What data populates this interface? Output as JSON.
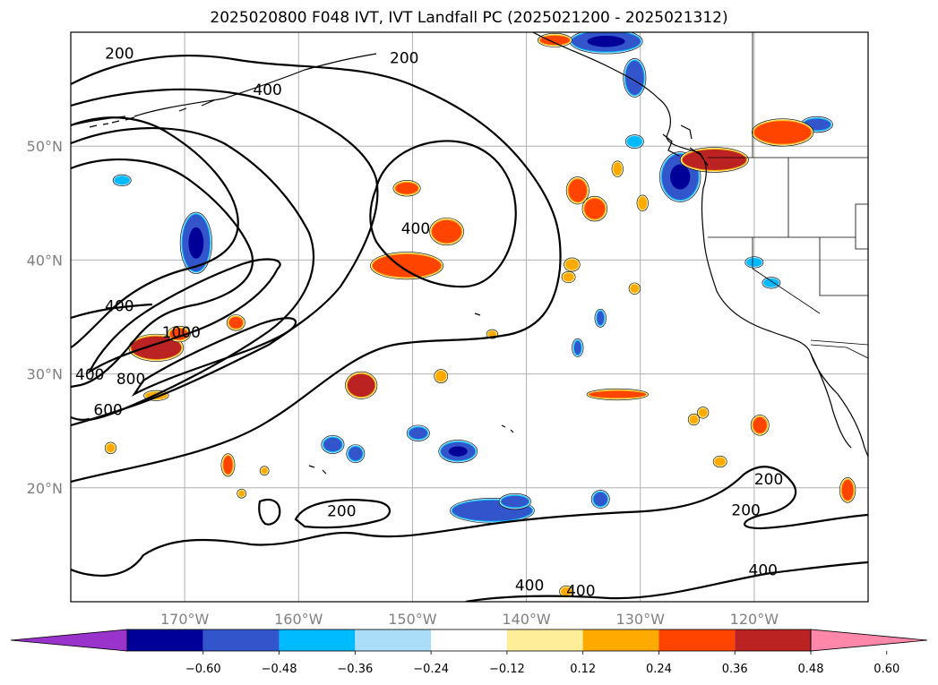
{
  "title": "2025020800 F048 IVT, IVT Landfall PC (2025021200 - 2025021312)",
  "map": {
    "region": "North Pacific / West Coast North America",
    "lon_range": [
      -180,
      -110
    ],
    "lat_range": [
      10,
      60
    ],
    "lat_ticks": [
      "50°N",
      "40°N",
      "30°N",
      "20°N"
    ],
    "lon_ticks": [
      "170°W",
      "160°W",
      "150°W",
      "140°W",
      "130°W",
      "120°W"
    ]
  },
  "contours": {
    "variable": "IVT",
    "levels": [
      200,
      400,
      600,
      800,
      1000
    ],
    "labels": [
      {
        "text": "200",
        "lon": -177,
        "lat": 57.7
      },
      {
        "text": "200",
        "lon": -152,
        "lat": 57.3
      },
      {
        "text": "400",
        "lon": -164,
        "lat": 54.5
      },
      {
        "text": "400",
        "lon": -151,
        "lat": 42.3
      },
      {
        "text": "400",
        "lon": -177,
        "lat": 35.5
      },
      {
        "text": "400",
        "lon": -188.2,
        "lat": 29.5
      },
      {
        "text": "1000",
        "lon": -172,
        "lat": 33.2
      },
      {
        "text": "800",
        "lon": -176,
        "lat": 29.1
      },
      {
        "text": "600",
        "lon": -178,
        "lat": 26.4
      },
      {
        "text": "200",
        "lon": -157.5,
        "lat": 17.5
      },
      {
        "text": "200",
        "lon": -120,
        "lat": 20.3
      },
      {
        "text": "200",
        "lon": -122,
        "lat": 17.6
      },
      {
        "text": "400",
        "lon": -141,
        "lat": 11.0
      },
      {
        "text": "400",
        "lon": -136.5,
        "lat": 10.5
      },
      {
        "text": "400",
        "lon": -120.5,
        "lat": 12.3
      }
    ]
  },
  "colorbar": {
    "levels": [
      "−0.60",
      "−0.48",
      "−0.36",
      "−0.24",
      "−0.12",
      "0.12",
      "0.24",
      "0.36",
      "0.48",
      "0.60"
    ],
    "colors": [
      "#9933cc",
      "#000099",
      "#3355cc",
      "#00bbff",
      "#aaddf7",
      "#ffffff",
      "#ffee99",
      "#ffaa00",
      "#ff4400",
      "#bb2222",
      "#ff88aa"
    ],
    "extend": "both"
  },
  "shading": {
    "variable": "IVT Landfall PC",
    "features": [
      {
        "sign": "neg",
        "lon": -169,
        "lat": 41.5,
        "rx": 1.2,
        "ry": 2.5,
        "intensity": 0.6
      },
      {
        "sign": "neg",
        "lon": -175.5,
        "lat": 47,
        "rx": 0.6,
        "ry": 0.3,
        "intensity": 0.2
      },
      {
        "sign": "neg",
        "lon": -133,
        "lat": 59.2,
        "rx": 3,
        "ry": 0.9,
        "intensity": 0.6
      },
      {
        "sign": "neg",
        "lon": -130.5,
        "lat": 56,
        "rx": 0.8,
        "ry": 1.5,
        "intensity": 0.3
      },
      {
        "sign": "neg",
        "lon": -126.5,
        "lat": 47.3,
        "rx": 1.6,
        "ry": 2.0,
        "intensity": 0.48
      },
      {
        "sign": "neg",
        "lon": -130.5,
        "lat": 50.4,
        "rx": 0.6,
        "ry": 0.4,
        "intensity": 0.2
      },
      {
        "sign": "neg",
        "lon": -114.5,
        "lat": 51.9,
        "rx": 1.2,
        "ry": 0.5,
        "intensity": 0.3
      },
      {
        "sign": "neg",
        "lon": -118.5,
        "lat": 38,
        "rx": 0.6,
        "ry": 0.3,
        "intensity": 0.2
      },
      {
        "sign": "neg",
        "lon": -143,
        "lat": 18,
        "rx": 3.5,
        "ry": 0.9,
        "intensity": 0.3
      },
      {
        "sign": "neg",
        "lon": -146,
        "lat": 23.2,
        "rx": 1.5,
        "ry": 0.8,
        "intensity": 0.48
      },
      {
        "sign": "neg",
        "lon": -149.5,
        "lat": 24.8,
        "rx": 0.8,
        "ry": 0.5,
        "intensity": 0.3
      },
      {
        "sign": "neg",
        "lon": -155,
        "lat": 23,
        "rx": 0.6,
        "ry": 0.6,
        "intensity": 0.3
      },
      {
        "sign": "neg",
        "lon": -157,
        "lat": 23.8,
        "rx": 0.8,
        "ry": 0.6,
        "intensity": 0.3
      },
      {
        "sign": "neg",
        "lon": -133.5,
        "lat": 19,
        "rx": 0.6,
        "ry": 0.6,
        "intensity": 0.3
      },
      {
        "sign": "neg",
        "lon": -141,
        "lat": 18.8,
        "rx": 1.2,
        "ry": 0.5,
        "intensity": 0.3
      },
      {
        "sign": "neg",
        "lon": -120,
        "lat": 39.8,
        "rx": 0.6,
        "ry": 0.3,
        "intensity": 0.2
      },
      {
        "sign": "neg",
        "lon": -133.5,
        "lat": 34.9,
        "rx": 0.3,
        "ry": 0.6,
        "intensity": 0.3
      },
      {
        "sign": "neg",
        "lon": -135.5,
        "lat": 32.3,
        "rx": 0.3,
        "ry": 0.6,
        "intensity": 0.3
      },
      {
        "sign": "pos",
        "lon": -172.5,
        "lat": 32.3,
        "rx": 2.2,
        "ry": 1.0,
        "intensity": 0.48
      },
      {
        "sign": "pos",
        "lon": -170.5,
        "lat": 33.5,
        "rx": 0.8,
        "ry": 0.5,
        "intensity": 0.36
      },
      {
        "sign": "pos",
        "lon": -165.5,
        "lat": 34.5,
        "rx": 0.6,
        "ry": 0.5,
        "intensity": 0.36
      },
      {
        "sign": "pos",
        "lon": -150.5,
        "lat": 39.5,
        "rx": 3.0,
        "ry": 1.0,
        "intensity": 0.36
      },
      {
        "sign": "pos",
        "lon": -147,
        "lat": 42.5,
        "rx": 1.3,
        "ry": 1.0,
        "intensity": 0.36
      },
      {
        "sign": "pos",
        "lon": -150.5,
        "lat": 46.3,
        "rx": 1.0,
        "ry": 0.5,
        "intensity": 0.36
      },
      {
        "sign": "pos",
        "lon": -135.5,
        "lat": 46.1,
        "rx": 0.8,
        "ry": 1.0,
        "intensity": 0.36
      },
      {
        "sign": "pos",
        "lon": -134,
        "lat": 44.5,
        "rx": 0.9,
        "ry": 0.9,
        "intensity": 0.36
      },
      {
        "sign": "pos",
        "lon": -154.5,
        "lat": 29,
        "rx": 1.2,
        "ry": 1.0,
        "intensity": 0.48
      },
      {
        "sign": "pos",
        "lon": -132,
        "lat": 28.2,
        "rx": 2.5,
        "ry": 0.3,
        "intensity": 0.36
      },
      {
        "sign": "pos",
        "lon": -117.5,
        "lat": 51.2,
        "rx": 2.5,
        "ry": 1.0,
        "intensity": 0.36
      },
      {
        "sign": "pos",
        "lon": -123.5,
        "lat": 48.8,
        "rx": 2.8,
        "ry": 0.9,
        "intensity": 0.48
      },
      {
        "sign": "pos",
        "lon": -132,
        "lat": 48,
        "rx": 0.3,
        "ry": 0.5,
        "intensity": 0.24
      },
      {
        "sign": "pos",
        "lon": -136,
        "lat": 39.6,
        "rx": 0.5,
        "ry": 0.4,
        "intensity": 0.24
      },
      {
        "sign": "pos",
        "lon": -136.3,
        "lat": 38.5,
        "rx": 0.4,
        "ry": 0.3,
        "intensity": 0.24
      },
      {
        "sign": "pos",
        "lon": -119.5,
        "lat": 25.5,
        "rx": 0.6,
        "ry": 0.7,
        "intensity": 0.36
      },
      {
        "sign": "pos",
        "lon": -111.8,
        "lat": 19.8,
        "rx": 0.5,
        "ry": 0.9,
        "intensity": 0.36
      },
      {
        "sign": "pos",
        "lon": -166.2,
        "lat": 22,
        "rx": 0.4,
        "ry": 0.8,
        "intensity": 0.36
      },
      {
        "sign": "pos",
        "lon": -172.5,
        "lat": 28.1,
        "rx": 0.9,
        "ry": 0.25,
        "intensity": 0.24
      },
      {
        "sign": "pos",
        "lon": -147.5,
        "lat": 29.8,
        "rx": 0.4,
        "ry": 0.4,
        "intensity": 0.24
      },
      {
        "sign": "pos",
        "lon": -123,
        "lat": 22.3,
        "rx": 0.4,
        "ry": 0.3,
        "intensity": 0.24
      },
      {
        "sign": "pos",
        "lon": -124.5,
        "lat": 26.6,
        "rx": 0.3,
        "ry": 0.3,
        "intensity": 0.24
      },
      {
        "sign": "pos",
        "lon": -125.3,
        "lat": 26.0,
        "rx": 0.3,
        "ry": 0.3,
        "intensity": 0.24
      },
      {
        "sign": "pos",
        "lon": -129.8,
        "lat": 45.0,
        "rx": 0.3,
        "ry": 0.5,
        "intensity": 0.24
      },
      {
        "sign": "pos",
        "lon": -143,
        "lat": 33.5,
        "rx": 0.3,
        "ry": 0.2,
        "intensity": 0.24
      },
      {
        "sign": "pos",
        "lon": -136.5,
        "lat": 10.9,
        "rx": 0.4,
        "ry": 0.3,
        "intensity": 0.24
      },
      {
        "sign": "pos",
        "lon": -176.5,
        "lat": 23.5,
        "rx": 0.3,
        "ry": 0.3,
        "intensity": 0.24
      },
      {
        "sign": "pos",
        "lon": -163,
        "lat": 21.5,
        "rx": 0.2,
        "ry": 0.2,
        "intensity": 0.24
      },
      {
        "sign": "pos",
        "lon": -165,
        "lat": 19.5,
        "rx": 0.2,
        "ry": 0.2,
        "intensity": 0.24
      },
      {
        "sign": "pos",
        "lon": -137.5,
        "lat": 59.3,
        "rx": 1.3,
        "ry": 0.4,
        "intensity": 0.36
      },
      {
        "sign": "pos",
        "lon": -130.5,
        "lat": 37.5,
        "rx": 0.3,
        "ry": 0.3,
        "intensity": 0.24
      }
    ]
  }
}
